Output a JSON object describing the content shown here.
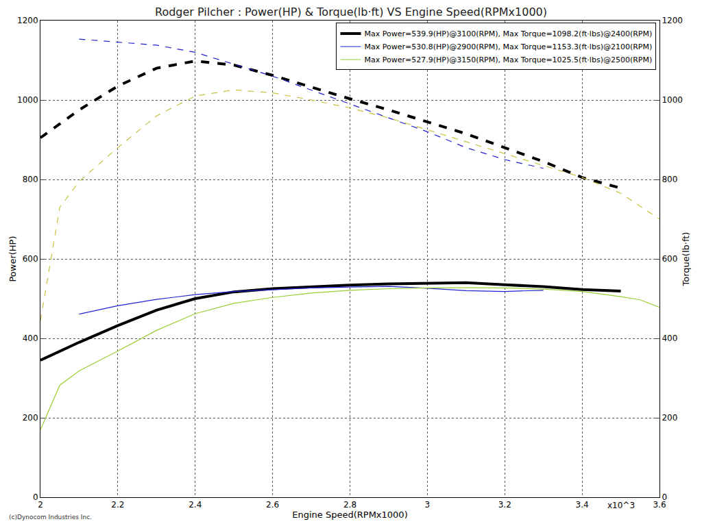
{
  "chart_data": {
    "type": "line",
    "title": "Rodger Pilcher : Power(HP) & Torque(lb·ft) VS Engine Speed(RPMx1000)",
    "x_label": "Engine Speed(RPMx1000)",
    "y_label": "Power(HP)",
    "y2_label": "Torque(lb·ft)",
    "xlim": [
      2,
      3.6
    ],
    "xticks": [
      2,
      2.2,
      2.4,
      2.6,
      2.8,
      3,
      3.2,
      3.4,
      3.6
    ],
    "ylim": [
      0,
      1200
    ],
    "yticks": [
      0,
      200,
      400,
      600,
      800,
      1000,
      1200
    ],
    "y2lim": [
      0,
      1200
    ],
    "y2ticks": [
      0,
      200,
      400,
      600,
      800,
      1000,
      1200
    ],
    "grid": true,
    "legend": "top right",
    "annotations": [
      {
        "text": "x10^3",
        "x": 3.5
      },
      {
        "text": "(c)Dynocom Industries Inc."
      }
    ],
    "series": [
      {
        "name": "Max Power=539.9(HP)@3100(RPM), Max Torque=1098.2(ft·lbs)@2400(RPM)",
        "color": "#000000",
        "line_style": "solid",
        "x": [
          2,
          2.1,
          2.2,
          2.3,
          2.4,
          2.5,
          2.6,
          2.7,
          2.8,
          2.9,
          3,
          3.1,
          3.2,
          3.3,
          3.4,
          3.5
        ],
        "values": [
          345,
          390,
          432,
          471,
          500,
          517,
          525,
          530,
          534,
          537,
          538,
          539.9,
          535,
          530,
          523,
          519
        ]
      },
      {
        "color": "#000000",
        "line_style": "dash",
        "axis": "y2",
        "x": [
          2,
          2.1,
          2.2,
          2.3,
          2.4,
          2.5,
          2.6,
          2.7,
          2.8,
          2.9,
          3,
          3.1,
          3.2,
          3.3,
          3.4,
          3.5
        ],
        "values": [
          905,
          975,
          1035,
          1080,
          1098.2,
          1088,
          1062,
          1032,
          1003,
          975,
          945,
          915,
          880,
          845,
          805,
          778
        ]
      },
      {
        "name": "Max Power=530.8(HP)@2900(RPM), Max Torque=1153.3(ft·lbs)@2100(RPM)",
        "color": "#2020d0",
        "line_style": "solid",
        "x": [
          2.1,
          2.2,
          2.3,
          2.4,
          2.5,
          2.6,
          2.7,
          2.8,
          2.9,
          3,
          3.1,
          3.2,
          3.3
        ],
        "values": [
          461,
          482,
          498,
          510,
          518,
          523,
          527,
          529,
          530.8,
          526,
          520,
          518,
          521
        ]
      },
      {
        "color": "#2020d0",
        "line_style": "dash",
        "axis": "y2",
        "x": [
          2.1,
          2.2,
          2.3,
          2.4,
          2.5,
          2.6,
          2.7,
          2.8,
          2.9,
          3,
          3.1,
          3.2,
          3.3
        ],
        "values": [
          1153.3,
          1145,
          1138,
          1120,
          1090,
          1060,
          1025,
          990,
          955,
          920,
          880,
          850,
          828
        ]
      },
      {
        "name": "Max Power=527.9(HP)@3150(RPM), Max Torque=1025.5(ft·lbs)@2500(RPM)",
        "color": "#9acd32",
        "line_style": "solid",
        "x": [
          2,
          2.05,
          2.1,
          2.2,
          2.3,
          2.4,
          2.5,
          2.6,
          2.7,
          2.8,
          2.9,
          3,
          3.1,
          3.15,
          3.2,
          3.3,
          3.4,
          3.5,
          3.55,
          3.6
        ],
        "values": [
          170,
          282,
          318,
          368,
          420,
          462,
          488,
          503,
          514,
          521,
          525,
          527,
          527.5,
          527.9,
          527,
          524,
          518,
          505,
          497,
          478
        ]
      },
      {
        "color": "#c8c040",
        "line_style": "dash",
        "axis": "y2",
        "x": [
          2,
          2.05,
          2.1,
          2.2,
          2.3,
          2.4,
          2.5,
          2.6,
          2.7,
          2.8,
          2.9,
          3,
          3.1,
          3.2,
          3.3,
          3.4,
          3.5,
          3.6
        ],
        "values": [
          445,
          730,
          795,
          880,
          960,
          1010,
          1025.5,
          1018,
          1000,
          980,
          955,
          925,
          895,
          865,
          835,
          805,
          765,
          700
        ]
      }
    ]
  }
}
